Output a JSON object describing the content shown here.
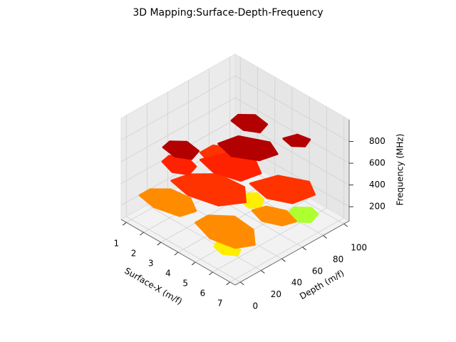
{
  "chart_data": {
    "type": "contour3d",
    "title": "3D Mapping:Surface-Depth-Frequency",
    "x_label": "Surface-X (m/f)",
    "y_label": "Depth (m/f)",
    "z_label": "Frequency (MHz)",
    "xlim": [
      0.7,
      7.3
    ],
    "ylim": [
      -5,
      105
    ],
    "zlim": [
      70,
      1000
    ],
    "xticks": [
      1,
      2,
      3,
      4,
      5,
      6,
      7
    ],
    "yticks": [
      0,
      20,
      40,
      60,
      80,
      100
    ],
    "zticks": [
      200,
      400,
      600,
      800
    ],
    "grid": true,
    "layers": [
      {
        "z": 150,
        "color": "#ffee00",
        "blobs": [
          {
            "x": [
              5.2,
              5.8,
              6.3,
              6.1,
              5.5,
              5.0
            ],
            "y": [
              10,
              8,
              14,
              20,
              22,
              17
            ]
          },
          {
            "x": [
              3.6,
              4.2,
              4.5,
              4.2,
              3.7,
              3.4
            ],
            "y": [
              62,
              60,
              66,
              74,
              76,
              70
            ]
          }
        ]
      },
      {
        "z": 150,
        "color": "#adff2f",
        "blobs": [
          {
            "x": [
              5.6,
              6.3,
              6.7,
              6.5,
              6.0,
              5.5
            ],
            "y": [
              74,
              72,
              78,
              88,
              90,
              82
            ]
          }
        ]
      },
      {
        "z": 250,
        "color": "#ff8c00",
        "blobs": [
          {
            "x": [
              1.0,
              2.0,
              3.2,
              3.4,
              2.6,
              1.6,
              1.0
            ],
            "y": [
              8,
              5,
              10,
              22,
              30,
              28,
              18
            ]
          },
          {
            "x": [
              4.0,
              5.2,
              6.4,
              6.8,
              6.0,
              4.8,
              4.0
            ],
            "y": [
              12,
              6,
              10,
              22,
              34,
              36,
              24
            ]
          },
          {
            "x": [
              5.0,
              5.8,
              6.6,
              6.8,
              6.0,
              5.2
            ],
            "y": [
              50,
              46,
              52,
              62,
              66,
              60
            ]
          }
        ]
      },
      {
        "z": 400,
        "color": "#ff3300",
        "blobs": [
          {
            "x": [
              2.0,
              3.2,
              4.6,
              5.2,
              4.4,
              3.0,
              2.2
            ],
            "y": [
              22,
              18,
              24,
              40,
              52,
              50,
              36
            ]
          },
          {
            "x": [
              4.4,
              5.6,
              6.6,
              6.8,
              6.0,
              4.8
            ],
            "y": [
              58,
              54,
              62,
              80,
              88,
              78
            ]
          },
          {
            "x": [
              1.4,
              2.2,
              3.0,
              3.0,
              2.2,
              1.4
            ],
            "y": [
              60,
              56,
              62,
              74,
              80,
              72
            ]
          }
        ]
      },
      {
        "z": 550,
        "color": "#ff2200",
        "blobs": [
          {
            "x": [
              2.6,
              3.6,
              4.8,
              5.0,
              4.2,
              3.0
            ],
            "y": [
              40,
              36,
              42,
              58,
              66,
              58
            ]
          },
          {
            "x": [
              1.6,
              2.4,
              3.0,
              2.8,
              2.0,
              1.5
            ],
            "y": [
              20,
              16,
              22,
              32,
              36,
              28
            ]
          }
        ]
      },
      {
        "z": 750,
        "color": "#b30000",
        "blobs": [
          {
            "x": [
              2.0,
              2.8,
              3.4,
              3.2,
              2.4,
              1.9
            ],
            "y": [
              14,
              12,
              18,
              28,
              30,
              22
            ]
          },
          {
            "x": [
              3.4,
              4.4,
              5.4,
              5.6,
              4.8,
              3.6
            ],
            "y": [
              44,
              40,
              50,
              64,
              70,
              60
            ]
          },
          {
            "x": [
              2.6,
              3.4,
              4.0,
              3.8,
              3.0,
              2.5
            ],
            "y": [
              70,
              68,
              74,
              84,
              86,
              78
            ]
          },
          {
            "x": [
              5.0,
              5.6,
              6.0,
              5.8,
              5.2
            ],
            "y": [
              80,
              78,
              84,
              92,
              90
            ]
          }
        ]
      }
    ]
  }
}
